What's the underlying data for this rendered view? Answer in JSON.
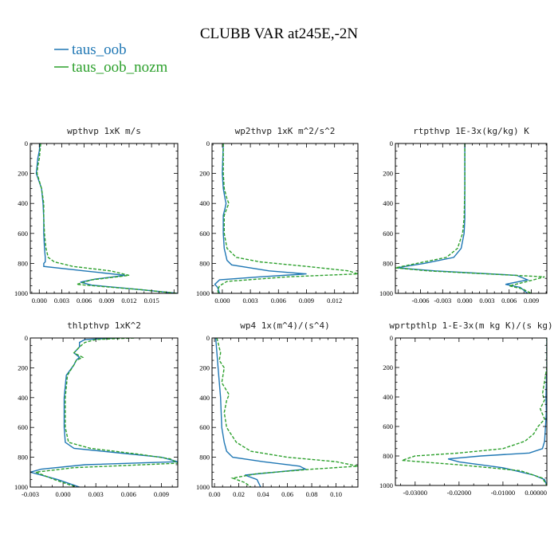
{
  "figure": {
    "title": "CLUBB VAR at245E,-2N",
    "legend": [
      {
        "label": "taus_oob",
        "color": "#1f77b4",
        "dash": "solid"
      },
      {
        "label": "taus_oob_nozm",
        "color": "#2ca02c",
        "dash": "dashed"
      }
    ]
  },
  "chart_data": [
    {
      "type": "line",
      "title": "wpthvp   1xK m/s",
      "ylim": [
        1000,
        0
      ],
      "xlim": [
        -0.0012,
        0.0185
      ],
      "xticks": [
        0.0,
        0.003,
        0.006,
        0.009,
        0.012,
        0.015
      ],
      "xtick_labels": [
        "0.000",
        "0.003",
        "0.006",
        "0.009",
        "0.012",
        "0.015"
      ],
      "yticks": [
        0,
        200,
        400,
        600,
        800,
        1000
      ],
      "ytick_labels": [
        "0",
        "200",
        "400",
        "600",
        "800",
        "1000"
      ],
      "series": [
        {
          "name": "taus_oob",
          "y": [
            0,
            50,
            100,
            150,
            200,
            300,
            400,
            500,
            600,
            700,
            760,
            790,
            800,
            820,
            850,
            880,
            905,
            925,
            945,
            970,
            1000
          ],
          "x": [
            0.0001,
            0.0,
            -0.0002,
            -0.0003,
            -0.0004,
            0.0003,
            0.0005,
            0.0006,
            0.0006,
            0.0007,
            0.0008,
            0.0008,
            0.0006,
            0.0006,
            0.006,
            0.0115,
            0.0075,
            0.0055,
            0.007,
            0.0125,
            0.0185
          ]
        },
        {
          "name": "taus_oob_nozm",
          "y": [
            0,
            50,
            100,
            150,
            200,
            300,
            400,
            500,
            600,
            700,
            760,
            790,
            820,
            850,
            880,
            910,
            940,
            955,
            975,
            1000
          ],
          "x": [
            0.0002,
            0.0001,
            0.0,
            -0.0002,
            -0.0003,
            0.0003,
            0.0006,
            0.0006,
            0.0007,
            0.0009,
            0.0012,
            0.002,
            0.0045,
            0.0095,
            0.012,
            0.007,
            0.005,
            0.0085,
            0.0135,
            0.0185
          ]
        }
      ]
    },
    {
      "type": "line",
      "title": "wp2thvp   1xK m^2/s^2",
      "ylim": [
        1000,
        0
      ],
      "xlim": [
        -0.0011,
        0.0145
      ],
      "xticks": [
        0.0,
        0.003,
        0.006,
        0.009,
        0.012
      ],
      "xtick_labels": [
        "0.000",
        "0.003",
        "0.006",
        "0.009",
        "0.012"
      ],
      "yticks": [
        0,
        200,
        400,
        600,
        800,
        1000
      ],
      "ytick_labels": [
        "0",
        "200",
        "400",
        "600",
        "800",
        "1000"
      ],
      "series": [
        {
          "name": "taus_oob",
          "y": [
            0,
            200,
            300,
            370,
            400,
            430,
            480,
            600,
            700,
            780,
            810,
            850,
            870,
            890,
            910,
            940,
            960,
            1000
          ],
          "x": [
            0.0001,
            0.0,
            0.0001,
            0.0003,
            0.0004,
            0.0003,
            0.0001,
            0.0001,
            0.0002,
            0.0005,
            0.001,
            0.005,
            0.009,
            0.004,
            -0.0003,
            -0.0008,
            -0.0005,
            -0.0003
          ]
        },
        {
          "name": "taus_oob_nozm",
          "y": [
            0,
            200,
            300,
            370,
            400,
            430,
            480,
            600,
            700,
            760,
            790,
            820,
            850,
            870,
            890,
            920,
            950,
            980,
            1000
          ],
          "x": [
            0.0001,
            0.0001,
            0.0002,
            0.0005,
            0.0007,
            0.0005,
            0.0002,
            0.0002,
            0.0005,
            0.0015,
            0.004,
            0.009,
            0.0135,
            0.0145,
            0.007,
            0.0005,
            -0.0003,
            -0.0005,
            -0.0004
          ]
        }
      ]
    },
    {
      "type": "line",
      "title": "rtpthvp   1E-3x(kg/kg) K",
      "ylim": [
        1000,
        0
      ],
      "xlim": [
        -0.0094,
        0.0111
      ],
      "xticks": [
        -0.006,
        -0.003,
        0.0,
        0.003,
        0.006,
        0.009
      ],
      "xtick_labels": [
        "-0.006",
        "-0.003",
        "0.000",
        "0.003",
        "0.006",
        "0.009"
      ],
      "yticks": [
        0,
        200,
        400,
        600,
        800,
        1000
      ],
      "ytick_labels": [
        "0",
        "200",
        "400",
        "600",
        "800",
        "1000"
      ],
      "series": [
        {
          "name": "taus_oob",
          "y": [
            0,
            300,
            500,
            600,
            700,
            760,
            800,
            830,
            850,
            880,
            910,
            940,
            960,
            1000
          ],
          "x": [
            0.0,
            0.0,
            0.0,
            -0.0001,
            -0.0005,
            -0.0015,
            -0.0055,
            -0.0092,
            -0.004,
            0.007,
            0.0085,
            0.0055,
            0.0075,
            0.0085
          ]
        },
        {
          "name": "taus_oob_nozm",
          "y": [
            0,
            300,
            500,
            600,
            700,
            760,
            800,
            830,
            850,
            890,
            920,
            950,
            970,
            1000
          ],
          "x": [
            0.0,
            0.0,
            -0.0001,
            -0.0003,
            -0.001,
            -0.0025,
            -0.0065,
            -0.0094,
            -0.005,
            0.0108,
            0.0085,
            0.006,
            0.0078,
            0.009
          ]
        }
      ]
    },
    {
      "type": "line",
      "title": "thlpthvp   1xK^2",
      "ylim": [
        1000,
        0
      ],
      "xlim": [
        -0.003,
        0.0105
      ],
      "xticks": [
        -0.003,
        0.0,
        0.003,
        0.006,
        0.009
      ],
      "xtick_labels": [
        "-0.003",
        "0.000",
        "0.003",
        "0.006",
        "0.009"
      ],
      "yticks": [
        0,
        200,
        400,
        600,
        800,
        1000
      ],
      "ytick_labels": [
        "0",
        "200",
        "400",
        "600",
        "800",
        "1000"
      ],
      "series": [
        {
          "name": "taus_oob",
          "y": [
            0,
            10,
            30,
            60,
            100,
            130,
            150,
            180,
            250,
            400,
            600,
            700,
            740,
            770,
            800,
            830,
            850,
            880,
            900,
            950,
            1000
          ],
          "x": [
            0.005,
            0.002,
            0.0015,
            0.0015,
            0.001,
            0.0015,
            0.0012,
            0.001,
            0.0003,
            0.0001,
            0.0001,
            0.0002,
            0.001,
            0.005,
            0.009,
            0.0105,
            0.002,
            -0.002,
            -0.003,
            -0.0005,
            0.0015
          ]
        },
        {
          "name": "taus_oob_nozm",
          "y": [
            0,
            10,
            30,
            60,
            100,
            130,
            150,
            180,
            250,
            400,
            600,
            700,
            740,
            780,
            810,
            840,
            870,
            900,
            950,
            1000
          ],
          "x": [
            0.0065,
            0.003,
            0.002,
            0.0015,
            0.001,
            0.0018,
            0.0012,
            0.001,
            0.0004,
            0.0002,
            0.0002,
            0.0005,
            0.0025,
            0.007,
            0.0098,
            0.0105,
            0.001,
            -0.0025,
            -0.0008,
            0.0012
          ]
        }
      ]
    },
    {
      "type": "line",
      "title": "wp4   1x(m^4)/(s^4)",
      "ylim": [
        1000,
        0
      ],
      "xlim": [
        -0.002,
        0.118
      ],
      "xticks": [
        0.0,
        0.02,
        0.04,
        0.06,
        0.08,
        0.1
      ],
      "xtick_labels": [
        "0.00",
        "0.02",
        "0.04",
        "0.06",
        "0.08",
        "0.10"
      ],
      "yticks": [
        0,
        200,
        400,
        600,
        800,
        1000
      ],
      "ytick_labels": [
        "0",
        "200",
        "400",
        "600",
        "800",
        "1000"
      ],
      "series": [
        {
          "name": "taus_oob",
          "y": [
            0,
            100,
            200,
            400,
            600,
            700,
            760,
            800,
            830,
            860,
            880,
            900,
            920,
            950,
            1000
          ],
          "x": [
            0.001,
            0.002,
            0.003,
            0.005,
            0.006,
            0.008,
            0.01,
            0.015,
            0.04,
            0.07,
            0.075,
            0.05,
            0.025,
            0.035,
            0.038
          ]
        },
        {
          "name": "taus_oob_nozm",
          "y": [
            0,
            100,
            150,
            200,
            300,
            380,
            420,
            500,
            600,
            700,
            760,
            800,
            830,
            860,
            880,
            910,
            940,
            970,
            1000
          ],
          "x": [
            0.002,
            0.005,
            0.004,
            0.008,
            0.006,
            0.012,
            0.01,
            0.008,
            0.01,
            0.018,
            0.03,
            0.06,
            0.1,
            0.118,
            0.08,
            0.035,
            0.015,
            0.025,
            0.03
          ]
        }
      ]
    },
    {
      "type": "line",
      "title": "wprtpthlp   1-E-3x(m kg K)/(s kg)",
      "ylim": [
        1000,
        0
      ],
      "xlim": [
        -0.0345,
        0.0
      ],
      "xticks": [
        -0.03,
        -0.02,
        -0.01,
        0.0
      ],
      "xtick_labels": [
        "-0.03000",
        "-0.02000",
        "-0.01000",
        "0.00000"
      ],
      "yticks": [
        0,
        200,
        400,
        600,
        800,
        1000
      ],
      "ytick_labels": [
        "0",
        "200",
        "400",
        "600",
        "800",
        "1000"
      ],
      "series": [
        {
          "name": "taus_oob",
          "y": [
            0,
            200,
            400,
            500,
            600,
            700,
            750,
            780,
            800,
            820,
            840,
            880,
            930,
            960,
            1000
          ],
          "x": [
            0.0,
            0.0,
            -0.0002,
            -0.0001,
            -0.0003,
            -0.0005,
            -0.001,
            -0.004,
            -0.015,
            -0.0225,
            -0.02,
            -0.01,
            -0.003,
            -0.0005,
            0.0
          ]
        },
        {
          "name": "taus_oob_nozm",
          "y": [
            0,
            200,
            380,
            420,
            480,
            550,
            600,
            650,
            700,
            750,
            780,
            800,
            830,
            860,
            900,
            950,
            1000
          ],
          "x": [
            0.0,
            0.0,
            -0.001,
            -0.0005,
            -0.0015,
            -0.0005,
            -0.002,
            -0.003,
            -0.005,
            -0.01,
            -0.02,
            -0.03,
            -0.033,
            -0.02,
            -0.006,
            -0.001,
            0.0
          ]
        }
      ]
    }
  ]
}
